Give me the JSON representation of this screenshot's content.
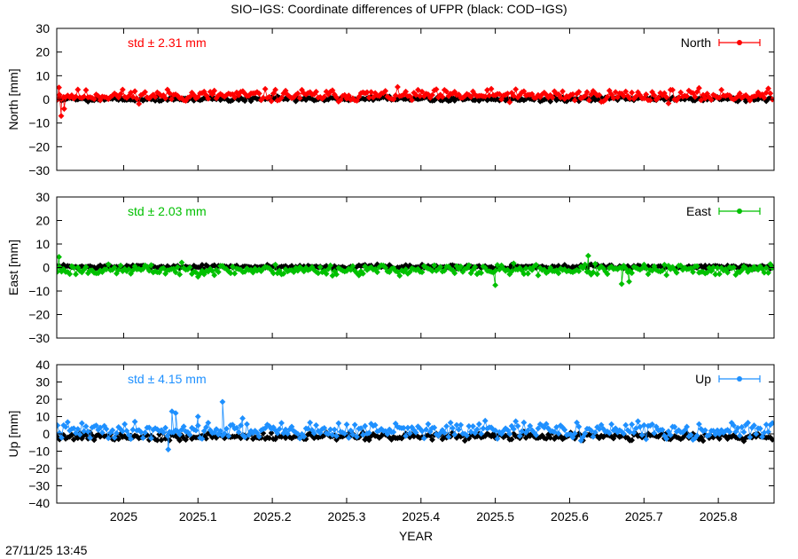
{
  "chart_data": {
    "type": "scatter",
    "title": "SIO−IGS: Coordinate differences of UFPR (black: COD−IGS)",
    "xlabel": "YEAR",
    "x_range": [
      2024.91,
      2025.875
    ],
    "x_ticks": [
      2025,
      2025.1,
      2025.2,
      2025.3,
      2025.4,
      2025.5,
      2025.6,
      2025.7,
      2025.8
    ],
    "x_tick_labels": [
      "2025",
      "2025.1",
      "2025.2",
      "2025.3",
      "2025.4",
      "2025.5",
      "2025.6",
      "2025.7",
      "2025.8"
    ],
    "x_step": 0.00274,
    "reference_color": "#000000",
    "panels": [
      {
        "key": "north",
        "ylabel": "North [mm]",
        "ylim": [
          -30,
          30
        ],
        "yticks": [
          -30,
          -20,
          -10,
          0,
          10,
          20,
          30
        ],
        "ytick_labels": [
          "−30",
          "−20",
          "−10",
          "0",
          "10",
          "20",
          "30"
        ],
        "legend": "North",
        "std_label": "std ± 2.31 mm",
        "color": "#ff0000",
        "sio": {
          "mean": 1.6,
          "amp": 2.31,
          "seed": 11,
          "outliers": [
            [
              2024.916,
              -7
            ],
            [
              2024.92,
              -4
            ],
            [
              2024.913,
              5
            ]
          ]
        },
        "cod": {
          "mean": 0.2,
          "amp": 0.9,
          "seed": 5
        }
      },
      {
        "key": "east",
        "ylabel": "East [mm]",
        "ylim": [
          -30,
          30
        ],
        "yticks": [
          -30,
          -20,
          -10,
          0,
          10,
          20,
          30
        ],
        "ytick_labels": [
          "−30",
          "−20",
          "−10",
          "0",
          "10",
          "20",
          "30"
        ],
        "legend": "East",
        "std_label": "std ± 2.03 mm",
        "color": "#00c000",
        "sio": {
          "mean": -1.0,
          "amp": 2.03,
          "seed": 23,
          "outliers": [
            [
              2024.913,
              4.5
            ],
            [
              2025.5,
              -7.5
            ],
            [
              2025.625,
              5
            ],
            [
              2025.67,
              -7
            ],
            [
              2025.68,
              -6
            ]
          ]
        },
        "cod": {
          "mean": 0.3,
          "amp": 0.8,
          "seed": 7
        }
      },
      {
        "key": "up",
        "ylabel": "Up [mm]",
        "ylim": [
          -40,
          40
        ],
        "yticks": [
          -40,
          -30,
          -20,
          -10,
          0,
          10,
          20,
          30,
          40
        ],
        "ytick_labels": [
          "−40",
          "−30",
          "−20",
          "−10",
          "0",
          "10",
          "20",
          "30",
          "40"
        ],
        "legend": "Up",
        "std_label": "std ± 4.15 mm",
        "color": "#1e90ff",
        "sio": {
          "mean": 2.0,
          "amp": 4.15,
          "seed": 41,
          "outliers": [
            [
              2025.133,
              18.5
            ],
            [
              2025.065,
              13
            ],
            [
              2025.07,
              12
            ],
            [
              2025.1,
              10
            ],
            [
              2025.16,
              9
            ],
            [
              2025.06,
              -9
            ]
          ]
        },
        "cod": {
          "mean": -1.5,
          "amp": 2.0,
          "seed": 9
        }
      }
    ]
  },
  "timestamp": "27/11/25 13:45"
}
